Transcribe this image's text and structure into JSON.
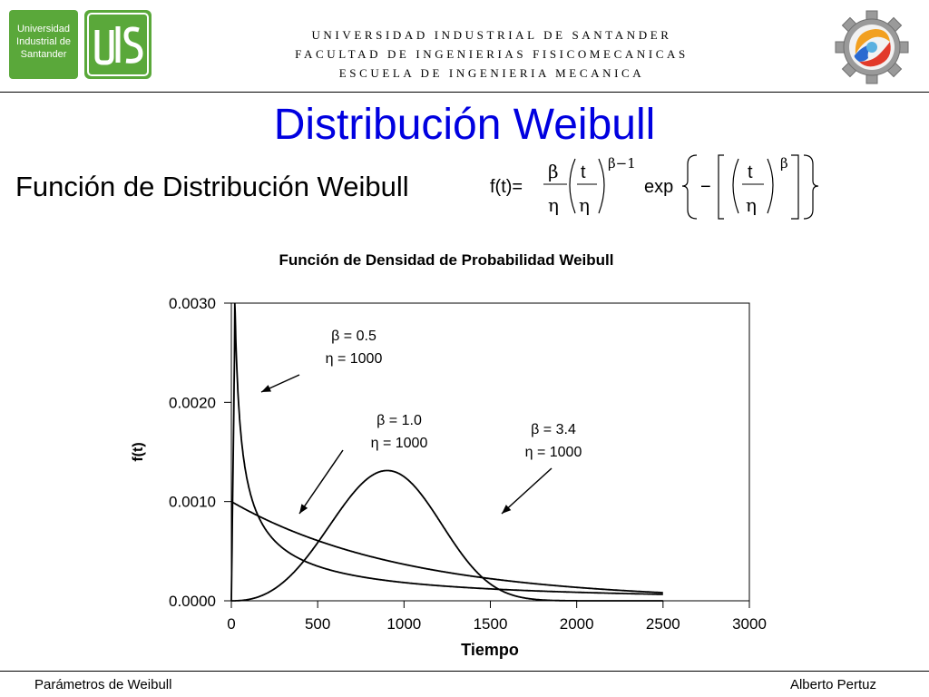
{
  "header": {
    "logo_left_text": [
      "Universidad",
      "Industrial de",
      "Santander"
    ],
    "line1": "UNIVERSIDAD INDUSTRIAL DE SANTANDER",
    "line2": "FACULTAD DE INGENIERIAS FISICOMECANICAS",
    "line3": "ESCUELA DE INGENIERIA MECANICA"
  },
  "slide": {
    "title": "Distribución Weibull",
    "subtitle": "Función de Distribución Weibull"
  },
  "formula": {
    "lhs": "f(t)=",
    "beta": "β",
    "eta": "η",
    "t": "t",
    "exponent1": "β−1",
    "exp": "exp",
    "minus": "−",
    "exponent2": "β"
  },
  "chart_data": {
    "type": "line",
    "title": "Función de Densidad de Probabilidad Weibull",
    "xlabel": "Tiempo",
    "ylabel": "f(t)",
    "xlim": [
      0,
      3000
    ],
    "ylim": [
      0,
      0.003
    ],
    "x_ticks": [
      "0",
      "500",
      "1000",
      "1500",
      "2000",
      "2500",
      "3000"
    ],
    "y_ticks": [
      "0.0000",
      "0.0010",
      "0.0020",
      "0.0030"
    ],
    "grid": false,
    "series": [
      {
        "name": "β = 0.5, η = 1000",
        "beta": 0.5,
        "eta": 1000,
        "x": [
          0,
          20,
          30,
          50,
          80,
          100,
          150,
          200,
          300,
          400,
          500,
          700,
          1000,
          1500,
          2000,
          2500
        ],
        "values": [
          0.0,
          0.0027,
          0.0026,
          0.0021,
          0.0017,
          0.00154,
          0.00123,
          0.00098,
          0.00066,
          0.00042,
          0.00035,
          0.00026,
          0.00018,
          0.00011,
          8e-05,
          5e-05
        ]
      },
      {
        "name": "β = 1.0, η = 1000",
        "beta": 1.0,
        "eta": 1000,
        "x": [
          0,
          250,
          500,
          750,
          1000,
          1250,
          1500,
          1750,
          2000,
          2250,
          2500
        ],
        "values": [
          0.001,
          0.00078,
          0.00061,
          0.00047,
          0.00037,
          0.00029,
          0.00022,
          0.00017,
          0.00014,
          0.00011,
          8e-05
        ]
      },
      {
        "name": "β = 3.4, η = 1000",
        "beta": 3.4,
        "eta": 1000,
        "x": [
          0,
          100,
          200,
          300,
          400,
          500,
          600,
          700,
          800,
          900,
          1000,
          1100,
          1200,
          1300,
          1400,
          1500,
          1600,
          1700,
          1800,
          2000,
          2200,
          2500
        ],
        "values": [
          0.0,
          1e-05,
          5e-05,
          0.00016,
          0.00035,
          0.00061,
          0.00088,
          0.00112,
          0.00128,
          0.00131,
          0.00125,
          0.00105,
          0.00078,
          0.0005,
          0.00027,
          0.00012,
          4e-05,
          1e-05,
          0.0,
          0.0,
          0.0,
          0.0
        ]
      }
    ],
    "annotations": [
      {
        "line1": "β = 0.5",
        "line2": "η = 1000"
      },
      {
        "line1": "β = 1.0",
        "line2": "η = 1000"
      },
      {
        "line1": "β = 3.4",
        "line2": "η = 1000"
      }
    ]
  },
  "footer": {
    "left": "Parámetros de Weibull",
    "right": "Alberto Pertuz"
  }
}
